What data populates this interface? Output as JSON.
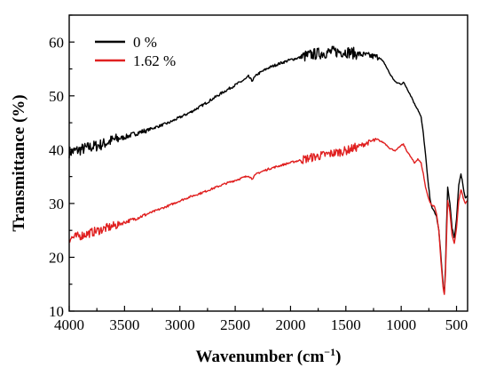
{
  "chart_data": {
    "type": "line",
    "title": "",
    "xlabel": "Wavenumber (cm",
    "xlabel_sup": "−1",
    "xlabel_close": ")",
    "ylabel": "Transmittance (%)",
    "xlim": [
      4000,
      400
    ],
    "x_reversed": true,
    "ylim": [
      10,
      65
    ],
    "x_ticks": [
      4000,
      3500,
      3000,
      2500,
      2000,
      1500,
      1000,
      500
    ],
    "y_ticks": [
      10,
      20,
      30,
      40,
      50,
      60
    ],
    "grid": false,
    "legend_position": "top-left",
    "series": [
      {
        "name": "0 %",
        "color": "#000000",
        "x": [
          4000,
          3900,
          3800,
          3700,
          3600,
          3500,
          3400,
          3300,
          3200,
          3100,
          3000,
          2900,
          2800,
          2700,
          2600,
          2500,
          2400,
          2380,
          2350,
          2300,
          2200,
          2100,
          2000,
          1900,
          1800,
          1700,
          1600,
          1500,
          1400,
          1300,
          1250,
          1200,
          1150,
          1100,
          1050,
          1000,
          980,
          950,
          900,
          880,
          850,
          820,
          800,
          780,
          760,
          740,
          720,
          700,
          680,
          660,
          640,
          620,
          610,
          600,
          590,
          580,
          560,
          540,
          520,
          500,
          480,
          460,
          450,
          440,
          420,
          400
        ],
        "y": [
          39.5,
          40,
          40.5,
          41,
          41.8,
          42.3,
          43,
          43.6,
          44.3,
          45,
          46,
          47,
          48.2,
          49.5,
          50.8,
          52,
          53.2,
          53.6,
          52.8,
          54,
          55.2,
          56,
          56.7,
          57.2,
          57.7,
          58,
          58.2,
          58.2,
          57.8,
          57.5,
          57.3,
          57.2,
          56,
          54,
          52.5,
          52.2,
          52.5,
          51.5,
          49.5,
          48.5,
          47.5,
          46,
          43,
          39,
          34.5,
          31,
          29,
          28.5,
          27.5,
          25,
          20,
          14.5,
          13.2,
          18,
          26,
          33,
          30,
          25.5,
          23.5,
          27,
          33.5,
          35.5,
          34.5,
          33,
          31,
          31.5
        ]
      },
      {
        "name": "1.62 %",
        "color": "#e02020",
        "x": [
          4000,
          3900,
          3800,
          3700,
          3600,
          3500,
          3400,
          3300,
          3200,
          3100,
          3000,
          2900,
          2800,
          2700,
          2600,
          2500,
          2400,
          2380,
          2350,
          2300,
          2200,
          2100,
          2000,
          1900,
          1800,
          1700,
          1600,
          1500,
          1400,
          1300,
          1250,
          1200,
          1150,
          1100,
          1050,
          1000,
          980,
          950,
          900,
          880,
          850,
          820,
          800,
          780,
          760,
          740,
          720,
          700,
          680,
          660,
          640,
          620,
          610,
          600,
          590,
          580,
          560,
          540,
          520,
          500,
          480,
          460,
          450,
          440,
          420,
          400
        ],
        "y": [
          23.5,
          24,
          24.6,
          25.2,
          25.8,
          26.5,
          27.2,
          28,
          28.8,
          29.6,
          30.5,
          31.3,
          32,
          32.8,
          33.6,
          34.3,
          35,
          35.2,
          34.6,
          35.6,
          36.4,
          37,
          37.6,
          38.1,
          38.6,
          39,
          39.4,
          39.8,
          40.5,
          41.3,
          41.7,
          41.7,
          41.2,
          40.2,
          39.8,
          40.8,
          41,
          39.8,
          38.2,
          37.5,
          38.3,
          37.5,
          35.5,
          33,
          31.5,
          30.2,
          29.6,
          29.5,
          28,
          25,
          19,
          14.2,
          13,
          17,
          24,
          30.5,
          28.5,
          24,
          22.5,
          25.5,
          30.5,
          32.5,
          32,
          31,
          30,
          30.5
        ]
      }
    ]
  }
}
